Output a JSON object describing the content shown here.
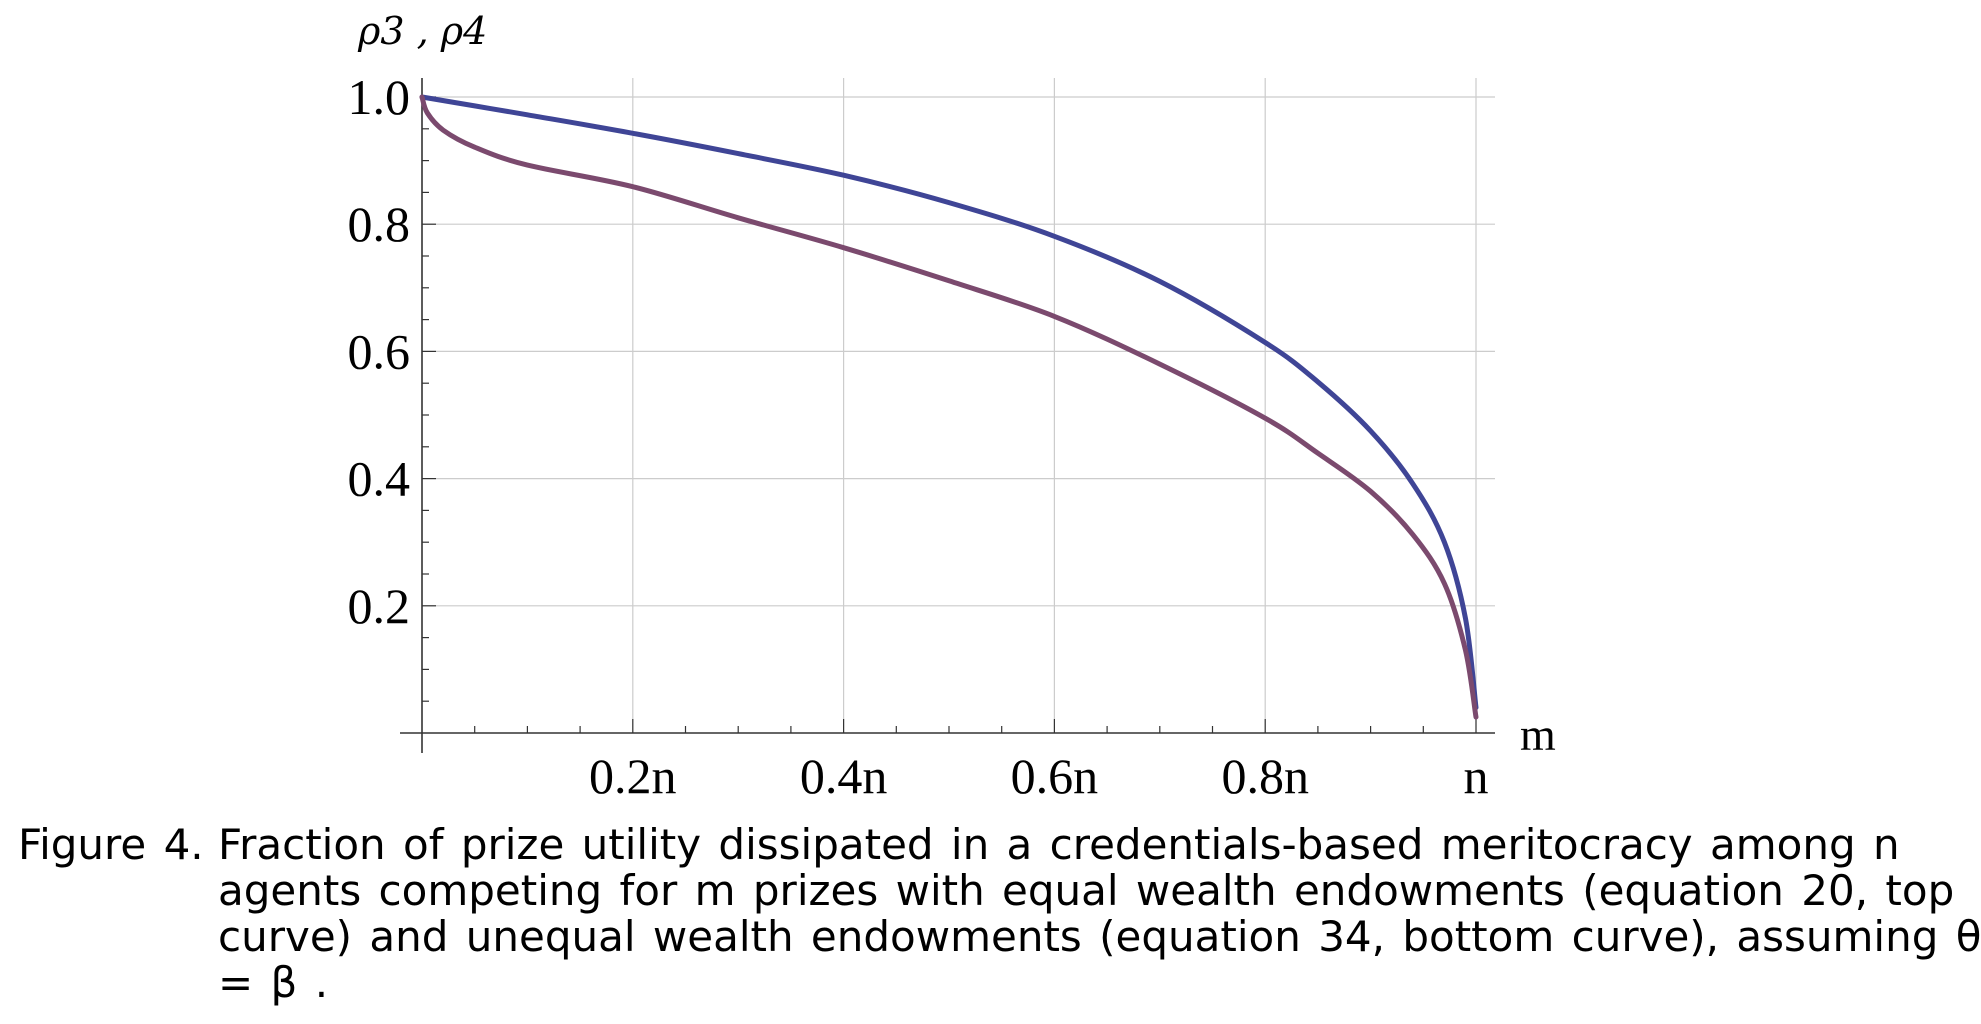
{
  "chart_data": {
    "type": "line",
    "ylabel": "ρ3 , ρ4",
    "xlabel": "m",
    "xlim": [
      0,
      1
    ],
    "ylim": [
      0,
      1
    ],
    "x_ticks": [
      {
        "value": 0.2,
        "label": "0.2n"
      },
      {
        "value": 0.4,
        "label": "0.4n"
      },
      {
        "value": 0.6,
        "label": "0.6n"
      },
      {
        "value": 0.8,
        "label": "0.8n"
      },
      {
        "value": 1.0,
        "label": "n"
      }
    ],
    "y_ticks": [
      {
        "value": 0.2,
        "label": "0.2"
      },
      {
        "value": 0.4,
        "label": "0.4"
      },
      {
        "value": 0.6,
        "label": "0.6"
      },
      {
        "value": 0.8,
        "label": "0.8"
      },
      {
        "value": 1.0,
        "label": "1.0"
      }
    ],
    "grid": true,
    "series": [
      {
        "color": "#3f4596",
        "x": [
          0,
          0.05,
          0.1,
          0.2,
          0.3,
          0.4,
          0.5,
          0.6,
          0.7,
          0.8,
          0.85,
          0.9,
          0.94,
          0.97,
          0.99,
          1.0
        ],
        "y": [
          1.0,
          0.986,
          0.972,
          0.943,
          0.911,
          0.877,
          0.834,
          0.781,
          0.71,
          0.614,
          0.552,
          0.475,
          0.392,
          0.3,
          0.18,
          0.04
        ]
      },
      {
        "color": "#7b4a6e",
        "x": [
          0,
          0.005,
          0.02,
          0.05,
          0.1,
          0.2,
          0.3,
          0.4,
          0.5,
          0.6,
          0.7,
          0.8,
          0.85,
          0.9,
          0.94,
          0.97,
          0.99,
          1.0
        ],
        "y": [
          1.0,
          0.975,
          0.948,
          0.921,
          0.893,
          0.859,
          0.81,
          0.763,
          0.711,
          0.655,
          0.58,
          0.495,
          0.44,
          0.38,
          0.312,
          0.235,
          0.13,
          0.025
        ]
      }
    ]
  },
  "caption": {
    "label": "Figure 4.",
    "line1": "Fraction of prize utility dissipated in a credentials-based meritocracy among n",
    "line2": "agents competing for m prizes with equal wealth endowments (equation 20, top",
    "line3": "curve) and unequal wealth endowments (equation 34, bottom curve), assuming θ",
    "line4": "= β ."
  }
}
